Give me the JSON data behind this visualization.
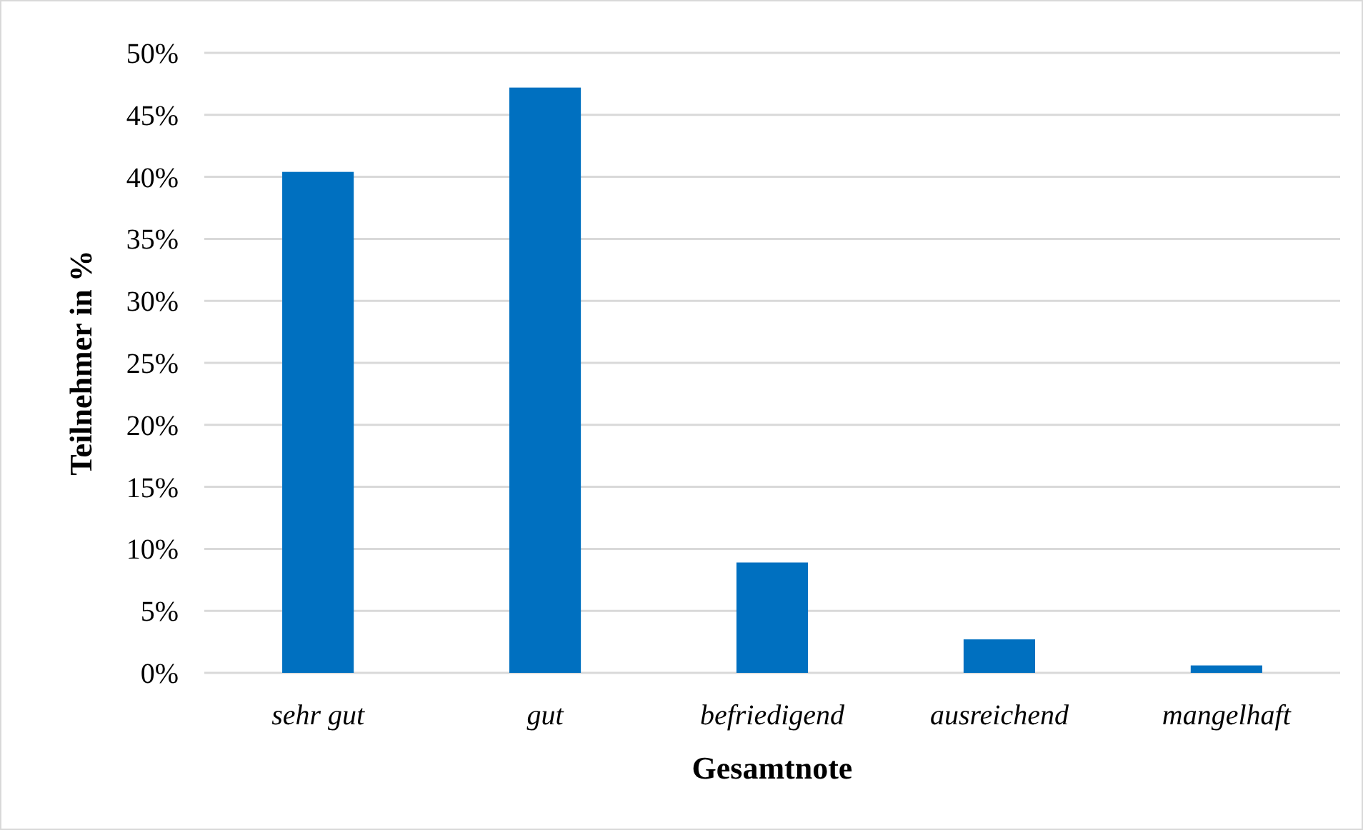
{
  "chart_data": {
    "type": "bar",
    "xlabel": "Gesamtnote",
    "ylabel": "Teilnehmer in %",
    "categories": [
      "sehr gut",
      "gut",
      "befriedigend",
      "ausreichend",
      "mangelhaft"
    ],
    "values": [
      40.4,
      47.2,
      8.9,
      2.7,
      0.6
    ],
    "color": "#0070c0",
    "ylim": [
      0,
      50
    ],
    "yticks": [
      {
        "value": 0,
        "label": "0%"
      },
      {
        "value": 5,
        "label": "5%"
      },
      {
        "value": 10,
        "label": "10%"
      },
      {
        "value": 15,
        "label": "15%"
      },
      {
        "value": 20,
        "label": "20%"
      },
      {
        "value": 25,
        "label": "25%"
      },
      {
        "value": 30,
        "label": "30%"
      },
      {
        "value": 35,
        "label": "35%"
      },
      {
        "value": 40,
        "label": "40%"
      },
      {
        "value": 45,
        "label": "45%"
      },
      {
        "value": 50,
        "label": "50%"
      }
    ],
    "grid": "y"
  }
}
